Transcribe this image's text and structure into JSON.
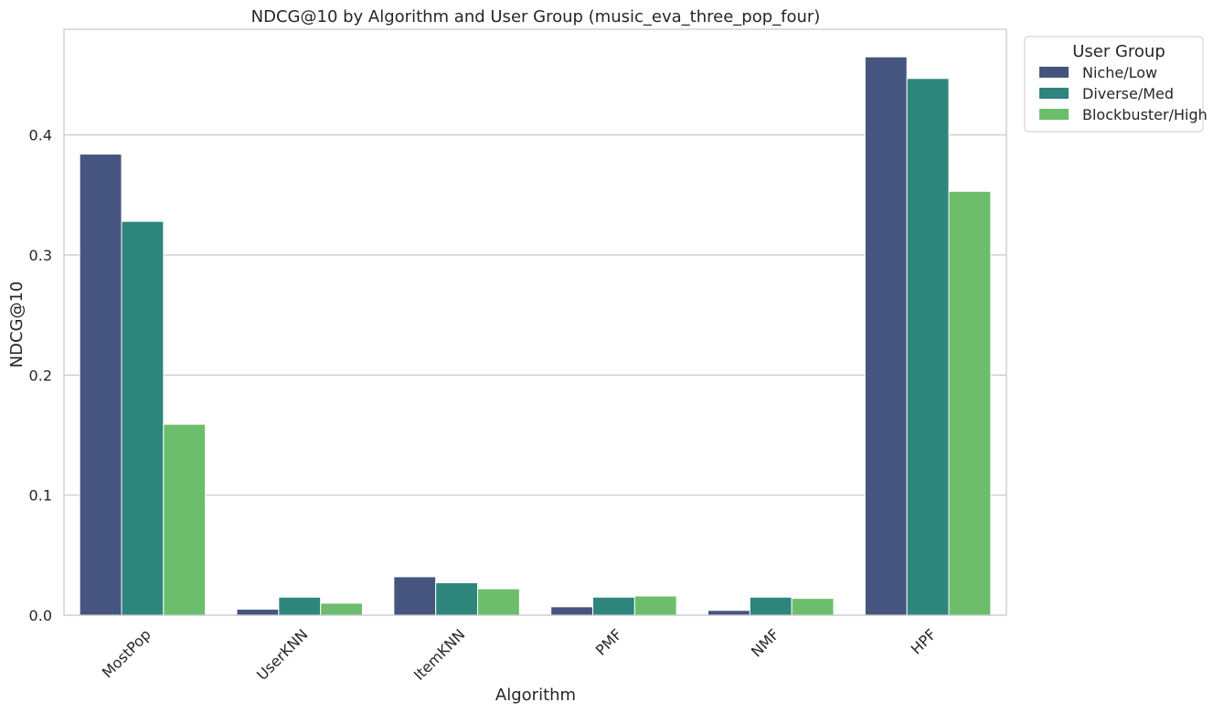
{
  "chart_data": {
    "type": "bar",
    "title": "NDCG@10 by Algorithm and User Group (music_eva_three_pop_four)",
    "xlabel": "Algorithm",
    "ylabel": "NDCG@10",
    "categories": [
      "MostPop",
      "UserKNN",
      "ItemKNN",
      "PMF",
      "NMF",
      "HPF"
    ],
    "ylim": [
      0,
      0.488
    ],
    "yticks": [
      0.0,
      0.1,
      0.2,
      0.3,
      0.4
    ],
    "ytick_labels": [
      "0.0",
      "0.1",
      "0.2",
      "0.3",
      "0.4"
    ],
    "grid": "horizontal",
    "legend_title": "User Group",
    "legend_position": "outside-top-right",
    "series": [
      {
        "name": "Niche/Low",
        "color": "#45557f",
        "values": [
          0.384,
          0.005,
          0.032,
          0.007,
          0.004,
          0.465
        ]
      },
      {
        "name": "Diverse/Med",
        "color": "#2e857c",
        "values": [
          0.328,
          0.015,
          0.027,
          0.015,
          0.015,
          0.447
        ]
      },
      {
        "name": "Blockbuster/High",
        "color": "#6cbe6c",
        "values": [
          0.159,
          0.01,
          0.022,
          0.016,
          0.014,
          0.353
        ]
      }
    ]
  }
}
